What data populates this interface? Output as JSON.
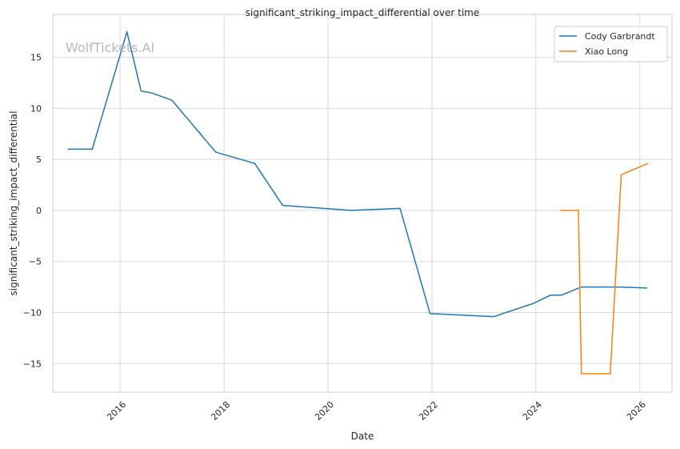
{
  "chart_data": {
    "type": "line",
    "title": "significant_striking_impact_differential over time",
    "xlabel": "Date",
    "ylabel": "significant_striking_impact_differential",
    "watermark": "WolfTickets.AI",
    "x_ticks": [
      "2016",
      "2018",
      "2020",
      "2022",
      "2024",
      "2026"
    ],
    "y_ticks": [
      "−15",
      "−10",
      "−5",
      "0",
      "5",
      "10",
      "15"
    ],
    "xlim": [
      "2014-09-15",
      "2026-08-15"
    ],
    "ylim": [
      -17.8,
      19.2
    ],
    "grid": true,
    "legend_position": "top-right",
    "series": [
      {
        "name": "Cody Garbrandt",
        "color": "#1f77b4",
        "points": [
          [
            "2014-12-28",
            6.0
          ],
          [
            "2015-06-19",
            6.0
          ],
          [
            "2016-02-18",
            17.5
          ],
          [
            "2016-05-27",
            11.7
          ],
          [
            "2016-08-10",
            11.5
          ],
          [
            "2016-12-30",
            10.8
          ],
          [
            "2017-11-04",
            5.7
          ],
          [
            "2018-08-04",
            4.6
          ],
          [
            "2019-02-17",
            0.5
          ],
          [
            "2020-06-13",
            0.0
          ],
          [
            "2021-05-22",
            0.2
          ],
          [
            "2021-12-18",
            -10.1
          ],
          [
            "2023-03-11",
            -10.4
          ],
          [
            "2023-12-16",
            -9.1
          ],
          [
            "2024-04-13",
            -8.3
          ],
          [
            "2024-06-29",
            -8.3
          ],
          [
            "2024-11-16",
            -7.5
          ],
          [
            "2025-08-16",
            -7.5
          ],
          [
            "2026-02-21",
            -7.6
          ]
        ]
      },
      {
        "name": "Xiao Long",
        "color": "#ff7f0e",
        "points": [
          [
            "2024-06-22",
            0.0
          ],
          [
            "2024-10-26",
            0.0
          ],
          [
            "2024-11-16",
            -16.0
          ],
          [
            "2025-06-07",
            -16.0
          ],
          [
            "2025-08-23",
            3.5
          ],
          [
            "2026-02-28",
            4.6
          ]
        ]
      }
    ]
  }
}
